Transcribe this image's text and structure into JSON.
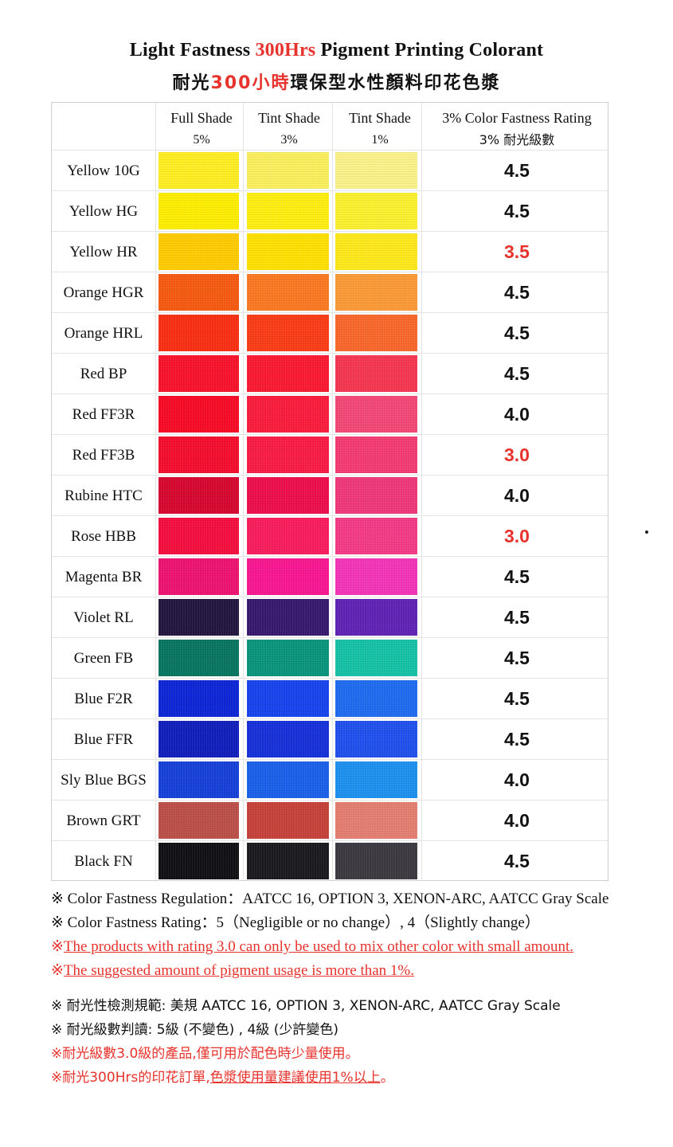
{
  "title": {
    "en_before": "Light Fastness ",
    "en_highlight": "300Hrs",
    "en_after": " Pigment Printing Colorant",
    "zh_before": "耐光",
    "zh_highlight": "300小時",
    "zh_after": "環保型水性顏料印花色漿"
  },
  "headers": {
    "full_shade": "Full Shade",
    "full_shade_pct": "5%",
    "tint_shade_3": "Tint Shade",
    "tint_shade_3_pct": "3%",
    "tint_shade_1": "Tint Shade",
    "tint_shade_1_pct": "1%",
    "rating": "3% Color Fastness Rating",
    "rating_zh": "3% 耐光級數"
  },
  "accent_red": "#e8322c",
  "rows": [
    {
      "name": "Yellow 10G",
      "full": "#ffee22",
      "t3": "#fbef5e",
      "t1": "#fbf28a",
      "rating": "4.5",
      "warn": false
    },
    {
      "name": "Yellow HG",
      "full": "#ffee00",
      "t3": "#ffef10",
      "t1": "#fcf12e",
      "rating": "4.5",
      "warn": false
    },
    {
      "name": "Yellow HR",
      "full": "#ffcc00",
      "t3": "#ffe100",
      "t1": "#ffe91a",
      "rating": "3.5",
      "warn": true
    },
    {
      "name": "Orange HGR",
      "full": "#f65a10",
      "t3": "#fb7922",
      "t1": "#fb9a36",
      "rating": "4.5",
      "warn": false
    },
    {
      "name": "Orange HRL",
      "full": "#fa2f12",
      "t3": "#fb3c16",
      "t1": "#f9672a",
      "rating": "4.5",
      "warn": false
    },
    {
      "name": "Red BP",
      "full": "#f8122a",
      "t3": "#fa1930",
      "t1": "#f63651",
      "rating": "4.5",
      "warn": false
    },
    {
      "name": "Red FF3R",
      "full": "#f80a25",
      "t3": "#fb1c3c",
      "t1": "#f34776",
      "rating": "4.0",
      "warn": false
    },
    {
      "name": "Red FF3B",
      "full": "#f50d2c",
      "t3": "#f91b45",
      "t1": "#f43a73",
      "rating": "3.0",
      "warn": true
    },
    {
      "name": "Rubine HTC",
      "full": "#d7062f",
      "t3": "#ee0d4c",
      "t1": "#f0377a",
      "rating": "4.0",
      "warn": false
    },
    {
      "name": "Rose HBB",
      "full": "#f50d3e",
      "t3": "#fa1c5c",
      "t1": "#f43a85",
      "rating": "3.0",
      "warn": true
    },
    {
      "name": "Magenta BR",
      "full": "#ee1270",
      "t3": "#f91690",
      "t1": "#f434b8",
      "rating": "4.5",
      "warn": false
    },
    {
      "name": "Violet RL",
      "full": "#221540",
      "t3": "#38186e",
      "t1": "#5f22b4",
      "rating": "4.5",
      "warn": false
    },
    {
      "name": "Green FB",
      "full": "#087561",
      "t3": "#09947d",
      "t1": "#16c2a6",
      "rating": "4.5",
      "warn": false
    },
    {
      "name": "Blue F2R",
      "full": "#0c25d6",
      "t3": "#1743ee",
      "t1": "#1e6bf1",
      "rating": "4.5",
      "warn": false
    },
    {
      "name": "Blue FFR",
      "full": "#101ebc",
      "t3": "#1530d9",
      "t1": "#1f50ee",
      "rating": "4.5",
      "warn": false
    },
    {
      "name": "Sly Blue BGS",
      "full": "#1540d8",
      "t3": "#1a60ea",
      "t1": "#1c90ee",
      "rating": "4.0",
      "warn": false
    },
    {
      "name": "Brown GRT",
      "full": "#bb5048",
      "t3": "#c64238",
      "t1": "#e47e70",
      "rating": "4.0",
      "warn": false
    },
    {
      "name": "Black FN",
      "full": "#101014",
      "t3": "#1a1a1e",
      "t1": "#3b3940",
      "rating": "4.5",
      "warn": false
    }
  ],
  "notes": {
    "n1": "※ Color Fastness Regulation：AATCC 16, OPTION 3, XENON-ARC, AATCC Gray Scale",
    "n2": "※ Color Fastness Rating：5（Negligible or no change）, 4（Slightly change）",
    "n3_mark": "※",
    "n3": "The products with rating 3.0 can only be used to mix other color with small amount.",
    "n4_mark": "※",
    "n4": "The suggested amount of pigment usage is more than 1%.",
    "z1": "※  耐光性檢測規範: 美規 AATCC 16, OPTION 3, XENON-ARC, AATCC Gray Scale",
    "z2": "※  耐光級數判讀:   5級 (不變色) ,  4級 (少許變色)",
    "z3": "※耐光級數3.0級的產品,僅可用於配色時少量使用。",
    "z4_prefix": "※耐光300Hrs的印花訂單,",
    "z4_underline": "色漿使用量建議使用1%以上",
    "z4_suffix": "。"
  }
}
